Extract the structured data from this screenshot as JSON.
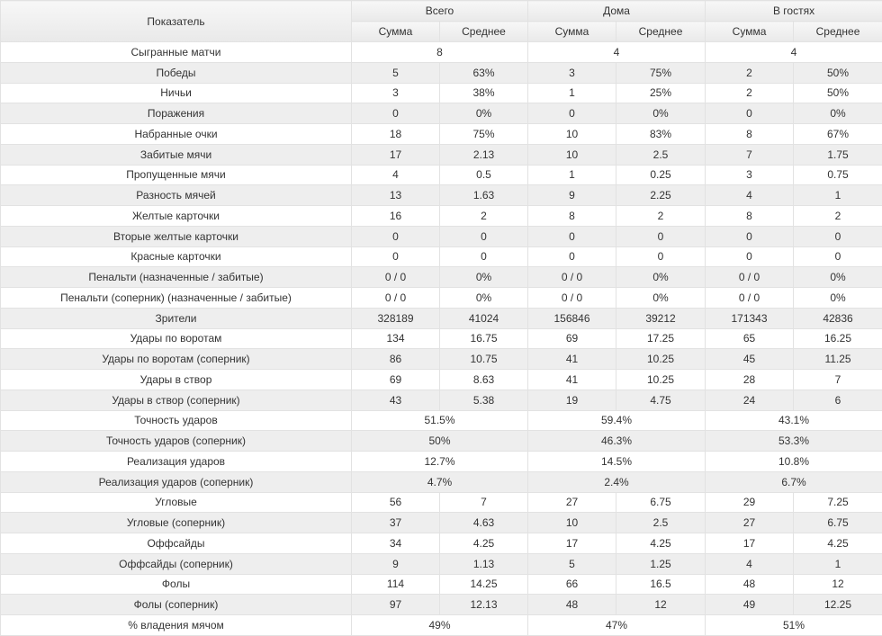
{
  "header": {
    "metric": "Показатель",
    "groups": [
      "Всего",
      "Дома",
      "В гостях"
    ],
    "sum": "Сумма",
    "avg": "Среднее"
  },
  "rows": [
    {
      "name": "Сыгранные матчи",
      "merged": [
        "8",
        "4",
        "4"
      ]
    },
    {
      "name": "Победы",
      "cells": [
        "5",
        "63%",
        "3",
        "75%",
        "2",
        "50%"
      ]
    },
    {
      "name": "Ничьи",
      "cells": [
        "3",
        "38%",
        "1",
        "25%",
        "2",
        "50%"
      ]
    },
    {
      "name": "Поражения",
      "cells": [
        "0",
        "0%",
        "0",
        "0%",
        "0",
        "0%"
      ]
    },
    {
      "name": "Набранные очки",
      "cells": [
        "18",
        "75%",
        "10",
        "83%",
        "8",
        "67%"
      ]
    },
    {
      "name": "Забитые мячи",
      "cells": [
        "17",
        "2.13",
        "10",
        "2.5",
        "7",
        "1.75"
      ]
    },
    {
      "name": "Пропущенные мячи",
      "cells": [
        "4",
        "0.5",
        "1",
        "0.25",
        "3",
        "0.75"
      ]
    },
    {
      "name": "Разность мячей",
      "cells": [
        "13",
        "1.63",
        "9",
        "2.25",
        "4",
        "1"
      ]
    },
    {
      "name": "Желтые карточки",
      "cells": [
        "16",
        "2",
        "8",
        "2",
        "8",
        "2"
      ]
    },
    {
      "name": "Вторые желтые карточки",
      "cells": [
        "0",
        "0",
        "0",
        "0",
        "0",
        "0"
      ]
    },
    {
      "name": "Красные карточки",
      "cells": [
        "0",
        "0",
        "0",
        "0",
        "0",
        "0"
      ]
    },
    {
      "name": "Пенальти (назначенные / забитые)",
      "cells": [
        "0 / 0",
        "0%",
        "0 / 0",
        "0%",
        "0 / 0",
        "0%"
      ]
    },
    {
      "name": "Пенальти (соперник) (назначенные / забитые)",
      "cells": [
        "0 / 0",
        "0%",
        "0 / 0",
        "0%",
        "0 / 0",
        "0%"
      ]
    },
    {
      "name": "Зрители",
      "cells": [
        "328189",
        "41024",
        "156846",
        "39212",
        "171343",
        "42836"
      ]
    },
    {
      "name": "Удары по воротам",
      "cells": [
        "134",
        "16.75",
        "69",
        "17.25",
        "65",
        "16.25"
      ]
    },
    {
      "name": "Удары по воротам (соперник)",
      "cells": [
        "86",
        "10.75",
        "41",
        "10.25",
        "45",
        "11.25"
      ]
    },
    {
      "name": "Удары в створ",
      "cells": [
        "69",
        "8.63",
        "41",
        "10.25",
        "28",
        "7"
      ]
    },
    {
      "name": "Удары в створ (соперник)",
      "cells": [
        "43",
        "5.38",
        "19",
        "4.75",
        "24",
        "6"
      ]
    },
    {
      "name": "Точность ударов",
      "merged": [
        "51.5%",
        "59.4%",
        "43.1%"
      ]
    },
    {
      "name": "Точность ударов (соперник)",
      "merged": [
        "50%",
        "46.3%",
        "53.3%"
      ]
    },
    {
      "name": "Реализация ударов",
      "merged": [
        "12.7%",
        "14.5%",
        "10.8%"
      ]
    },
    {
      "name": "Реализация ударов (соперник)",
      "merged": [
        "4.7%",
        "2.4%",
        "6.7%"
      ]
    },
    {
      "name": "Угловые",
      "cells": [
        "56",
        "7",
        "27",
        "6.75",
        "29",
        "7.25"
      ]
    },
    {
      "name": "Угловые (соперник)",
      "cells": [
        "37",
        "4.63",
        "10",
        "2.5",
        "27",
        "6.75"
      ]
    },
    {
      "name": "Оффсайды",
      "cells": [
        "34",
        "4.25",
        "17",
        "4.25",
        "17",
        "4.25"
      ]
    },
    {
      "name": "Оффсайды (соперник)",
      "cells": [
        "9",
        "1.13",
        "5",
        "1.25",
        "4",
        "1"
      ]
    },
    {
      "name": "Фолы",
      "cells": [
        "114",
        "14.25",
        "66",
        "16.5",
        "48",
        "12"
      ]
    },
    {
      "name": "Фолы (соперник)",
      "cells": [
        "97",
        "12.13",
        "48",
        "12",
        "49",
        "12.25"
      ]
    },
    {
      "name": "% владения мячом",
      "merged": [
        "49%",
        "47%",
        "51%"
      ]
    }
  ]
}
